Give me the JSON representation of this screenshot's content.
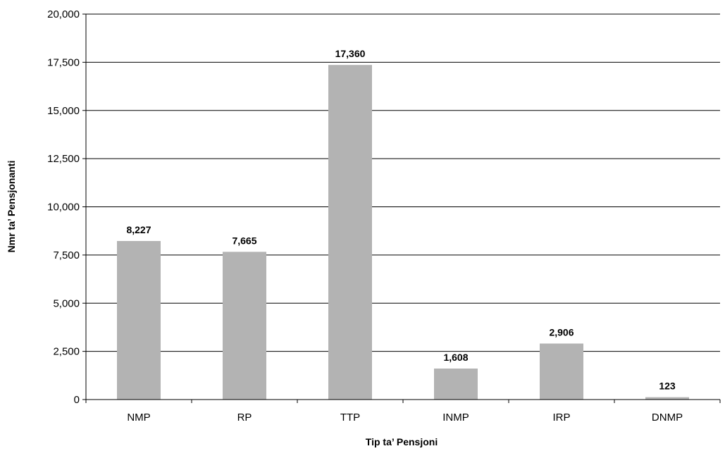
{
  "chart_data": {
    "type": "bar",
    "title": "",
    "xlabel": "Tip ta’ Pensjoni",
    "ylabel": "Nmr ta’ Pensjonanti",
    "categories": [
      "NMP",
      "RP",
      "TTP",
      "INMP",
      "IRP",
      "DNMP"
    ],
    "values": [
      8227,
      7665,
      17360,
      1608,
      2906,
      123
    ],
    "value_labels": [
      "8,227",
      "7,665",
      "17,360",
      "1,608",
      "2,906",
      "123"
    ],
    "ylim": [
      0,
      20000
    ],
    "yticks": [
      0,
      2500,
      5000,
      7500,
      10000,
      12500,
      15000,
      17500,
      20000
    ],
    "ytick_labels": [
      "0",
      "2,500",
      "5,000",
      "7,500",
      "10,000",
      "12,500",
      "15,000",
      "17,500",
      "20,000"
    ],
    "grid": true,
    "legend": "none",
    "bar_color": "#b3b3b3"
  }
}
